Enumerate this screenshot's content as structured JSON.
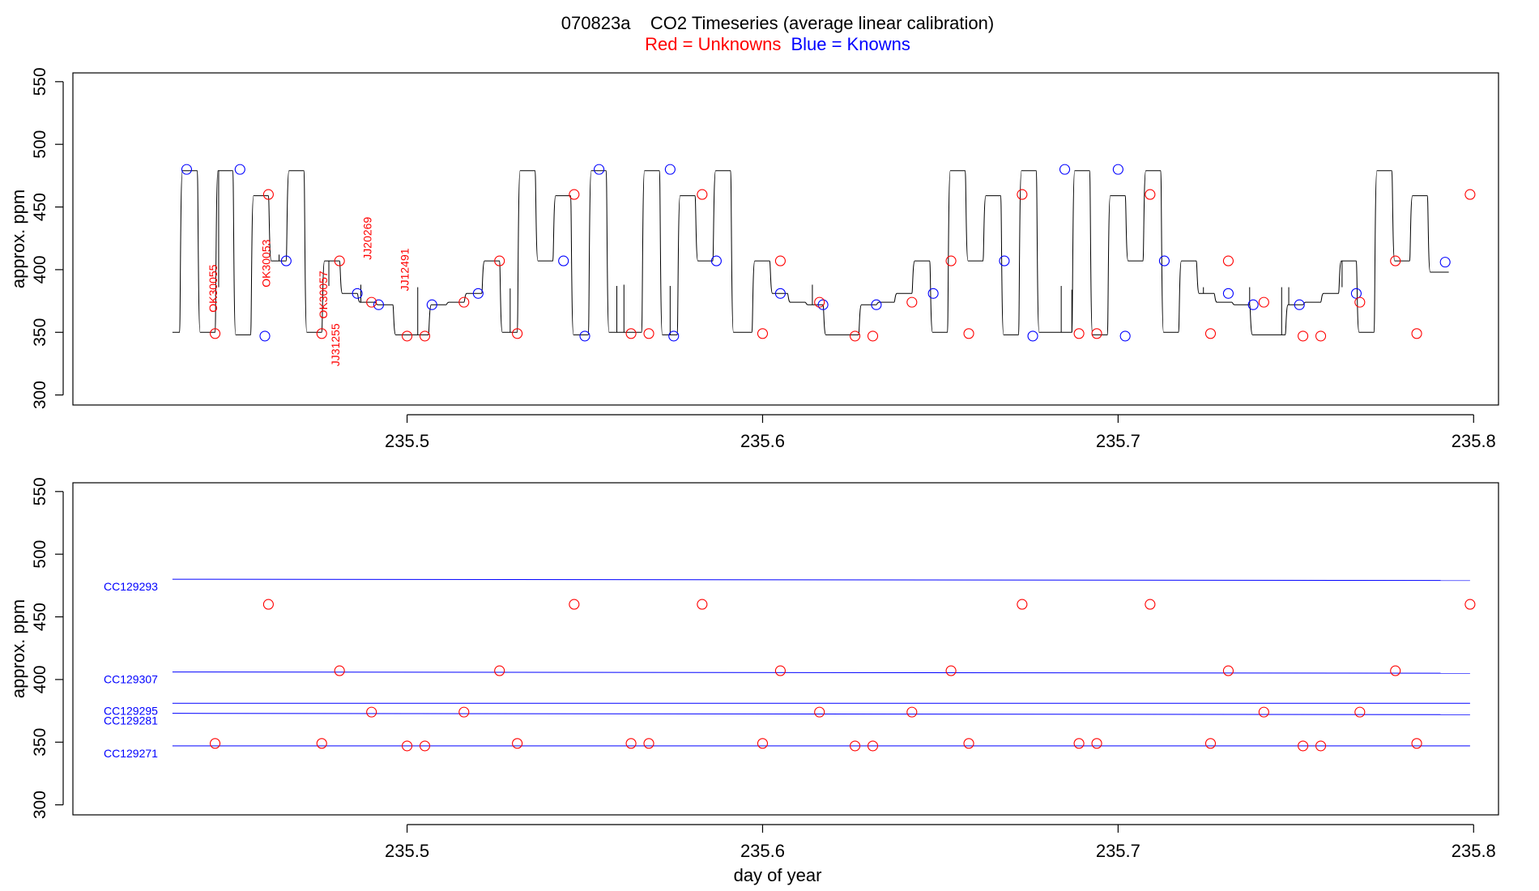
{
  "title": {
    "main": "070823a    CO2 Timeseries (average linear calibration)",
    "legend_red": "Red = Unknowns",
    "legend_blue": "Blue = Knowns"
  },
  "colors": {
    "unknown": "#ff0000",
    "known": "#0000ff",
    "trace": "#000000"
  },
  "chart_data": [
    {
      "type": "line",
      "panel": "top",
      "ylabel": "approx. ppm",
      "xlabel": "",
      "xlim": [
        235.406,
        235.807
      ],
      "ylim": [
        292,
        557
      ],
      "x_ticks": [
        "235.5",
        "235.6",
        "235.7",
        "235.8"
      ],
      "y_ticks": [
        "300",
        "350",
        "400",
        "450",
        "500",
        "550"
      ],
      "trace_levels": [
        {
          "x0": 235.434,
          "x1": 235.436,
          "y": 350
        },
        {
          "x0": 235.436,
          "x1": 235.441,
          "y": 479
        },
        {
          "x0": 235.441,
          "x1": 235.446,
          "y": 350
        },
        {
          "x0": 235.446,
          "x1": 235.451,
          "y": 479
        },
        {
          "x0": 235.451,
          "x1": 235.456,
          "y": 348
        },
        {
          "x0": 235.456,
          "x1": 235.461,
          "y": 459
        },
        {
          "x0": 235.461,
          "x1": 235.466,
          "y": 407
        },
        {
          "x0": 235.466,
          "x1": 235.471,
          "y": 479
        },
        {
          "x0": 235.471,
          "x1": 235.476,
          "y": 350
        },
        {
          "x0": 235.476,
          "x1": 235.481,
          "y": 407
        },
        {
          "x0": 235.481,
          "x1": 235.486,
          "y": 381
        },
        {
          "x0": 235.486,
          "x1": 235.491,
          "y": 374
        },
        {
          "x0": 235.491,
          "x1": 235.496,
          "y": 372
        },
        {
          "x0": 235.496,
          "x1": 235.506,
          "y": 348
        },
        {
          "x0": 235.506,
          "x1": 235.511,
          "y": 372
        },
        {
          "x0": 235.511,
          "x1": 235.516,
          "y": 374
        },
        {
          "x0": 235.516,
          "x1": 235.521,
          "y": 381
        },
        {
          "x0": 235.521,
          "x1": 235.526,
          "y": 407
        },
        {
          "x0": 235.526,
          "x1": 235.531,
          "y": 350
        },
        {
          "x0": 235.531,
          "x1": 235.536,
          "y": 479
        },
        {
          "x0": 235.536,
          "x1": 235.541,
          "y": 407
        },
        {
          "x0": 235.541,
          "x1": 235.546,
          "y": 459
        },
        {
          "x0": 235.546,
          "x1": 235.551,
          "y": 348
        },
        {
          "x0": 235.551,
          "x1": 235.556,
          "y": 479
        },
        {
          "x0": 235.556,
          "x1": 235.566,
          "y": 350
        },
        {
          "x0": 235.566,
          "x1": 235.571,
          "y": 479
        },
        {
          "x0": 235.571,
          "x1": 235.576,
          "y": 348
        },
        {
          "x0": 235.576,
          "x1": 235.581,
          "y": 459
        },
        {
          "x0": 235.581,
          "x1": 235.586,
          "y": 407
        },
        {
          "x0": 235.586,
          "x1": 235.591,
          "y": 479
        },
        {
          "x0": 235.591,
          "x1": 235.597,
          "y": 350
        },
        {
          "x0": 235.597,
          "x1": 235.602,
          "y": 407
        },
        {
          "x0": 235.602,
          "x1": 235.607,
          "y": 381
        },
        {
          "x0": 235.607,
          "x1": 235.612,
          "y": 374
        },
        {
          "x0": 235.612,
          "x1": 235.617,
          "y": 372
        },
        {
          "x0": 235.617,
          "x1": 235.627,
          "y": 348
        },
        {
          "x0": 235.627,
          "x1": 235.632,
          "y": 372
        },
        {
          "x0": 235.632,
          "x1": 235.637,
          "y": 374
        },
        {
          "x0": 235.637,
          "x1": 235.642,
          "y": 381
        },
        {
          "x0": 235.642,
          "x1": 235.647,
          "y": 407
        },
        {
          "x0": 235.647,
          "x1": 235.652,
          "y": 350
        },
        {
          "x0": 235.652,
          "x1": 235.657,
          "y": 479
        },
        {
          "x0": 235.657,
          "x1": 235.662,
          "y": 407
        },
        {
          "x0": 235.662,
          "x1": 235.667,
          "y": 459
        },
        {
          "x0": 235.667,
          "x1": 235.672,
          "y": 348
        },
        {
          "x0": 235.672,
          "x1": 235.677,
          "y": 479
        },
        {
          "x0": 235.677,
          "x1": 235.687,
          "y": 350
        },
        {
          "x0": 235.687,
          "x1": 235.692,
          "y": 479
        },
        {
          "x0": 235.692,
          "x1": 235.697,
          "y": 348
        },
        {
          "x0": 235.697,
          "x1": 235.702,
          "y": 459
        },
        {
          "x0": 235.702,
          "x1": 235.707,
          "y": 407
        },
        {
          "x0": 235.707,
          "x1": 235.712,
          "y": 479
        },
        {
          "x0": 235.712,
          "x1": 235.717,
          "y": 350
        },
        {
          "x0": 235.717,
          "x1": 235.722,
          "y": 407
        },
        {
          "x0": 235.722,
          "x1": 235.727,
          "y": 381
        },
        {
          "x0": 235.727,
          "x1": 235.732,
          "y": 374
        },
        {
          "x0": 235.732,
          "x1": 235.737,
          "y": 372
        },
        {
          "x0": 235.737,
          "x1": 235.747,
          "y": 348
        },
        {
          "x0": 235.747,
          "x1": 235.752,
          "y": 372
        },
        {
          "x0": 235.752,
          "x1": 235.757,
          "y": 374
        },
        {
          "x0": 235.757,
          "x1": 235.762,
          "y": 381
        },
        {
          "x0": 235.762,
          "x1": 235.767,
          "y": 407
        },
        {
          "x0": 235.767,
          "x1": 235.772,
          "y": 350
        },
        {
          "x0": 235.772,
          "x1": 235.777,
          "y": 479
        },
        {
          "x0": 235.777,
          "x1": 235.782,
          "y": 407
        },
        {
          "x0": 235.782,
          "x1": 235.787,
          "y": 459
        },
        {
          "x0": 235.787,
          "x1": 235.793,
          "y": 398
        }
      ],
      "spikes": [
        {
          "x": 235.447,
          "y": 386
        },
        {
          "x": 235.464,
          "y": 412
        },
        {
          "x": 235.478,
          "y": 387
        },
        {
          "x": 235.487,
          "y": 388
        },
        {
          "x": 235.503,
          "y": 386
        },
        {
          "x": 235.529,
          "y": 385
        },
        {
          "x": 235.559,
          "y": 387
        },
        {
          "x": 235.561,
          "y": 388
        },
        {
          "x": 235.574,
          "y": 387
        },
        {
          "x": 235.614,
          "y": 388
        },
        {
          "x": 235.684,
          "y": 387
        },
        {
          "x": 235.687,
          "y": 384
        },
        {
          "x": 235.724,
          "y": 386
        },
        {
          "x": 235.737,
          "y": 386
        },
        {
          "x": 235.746,
          "y": 386
        },
        {
          "x": 235.748,
          "y": 386
        },
        {
          "x": 235.763,
          "y": 386
        }
      ],
      "knowns": [
        {
          "x": 235.438,
          "y": 480
        },
        {
          "x": 235.453,
          "y": 480
        },
        {
          "x": 235.46,
          "y": 347
        },
        {
          "x": 235.466,
          "y": 407
        },
        {
          "x": 235.486,
          "y": 381
        },
        {
          "x": 235.492,
          "y": 372
        },
        {
          "x": 235.507,
          "y": 372
        },
        {
          "x": 235.52,
          "y": 381
        },
        {
          "x": 235.544,
          "y": 407
        },
        {
          "x": 235.55,
          "y": 347
        },
        {
          "x": 235.554,
          "y": 480
        },
        {
          "x": 235.574,
          "y": 480
        },
        {
          "x": 235.575,
          "y": 347
        },
        {
          "x": 235.587,
          "y": 407
        },
        {
          "x": 235.605,
          "y": 381
        },
        {
          "x": 235.617,
          "y": 372
        },
        {
          "x": 235.632,
          "y": 372
        },
        {
          "x": 235.648,
          "y": 381
        },
        {
          "x": 235.668,
          "y": 407
        },
        {
          "x": 235.676,
          "y": 347
        },
        {
          "x": 235.685,
          "y": 480
        },
        {
          "x": 235.7,
          "y": 480
        },
        {
          "x": 235.702,
          "y": 347
        },
        {
          "x": 235.713,
          "y": 407
        },
        {
          "x": 235.731,
          "y": 381
        },
        {
          "x": 235.738,
          "y": 372
        },
        {
          "x": 235.751,
          "y": 372
        },
        {
          "x": 235.767,
          "y": 381
        },
        {
          "x": 235.792,
          "y": 406
        }
      ],
      "unknowns": [
        {
          "x": 235.446,
          "y": 349
        },
        {
          "x": 235.461,
          "y": 460
        },
        {
          "x": 235.476,
          "y": 349
        },
        {
          "x": 235.481,
          "y": 407
        },
        {
          "x": 235.49,
          "y": 374
        },
        {
          "x": 235.5,
          "y": 347
        },
        {
          "x": 235.505,
          "y": 347
        },
        {
          "x": 235.516,
          "y": 374
        },
        {
          "x": 235.526,
          "y": 407
        },
        {
          "x": 235.531,
          "y": 349
        },
        {
          "x": 235.547,
          "y": 460
        },
        {
          "x": 235.563,
          "y": 349
        },
        {
          "x": 235.568,
          "y": 349
        },
        {
          "x": 235.583,
          "y": 460
        },
        {
          "x": 235.6,
          "y": 349
        },
        {
          "x": 235.605,
          "y": 407
        },
        {
          "x": 235.616,
          "y": 374
        },
        {
          "x": 235.626,
          "y": 347
        },
        {
          "x": 235.631,
          "y": 347
        },
        {
          "x": 235.642,
          "y": 374
        },
        {
          "x": 235.653,
          "y": 407
        },
        {
          "x": 235.658,
          "y": 349
        },
        {
          "x": 235.673,
          "y": 460
        },
        {
          "x": 235.689,
          "y": 349
        },
        {
          "x": 235.694,
          "y": 349
        },
        {
          "x": 235.709,
          "y": 460
        },
        {
          "x": 235.726,
          "y": 349
        },
        {
          "x": 235.731,
          "y": 407
        },
        {
          "x": 235.741,
          "y": 374
        },
        {
          "x": 235.752,
          "y": 347
        },
        {
          "x": 235.757,
          "y": 347
        },
        {
          "x": 235.768,
          "y": 374
        },
        {
          "x": 235.778,
          "y": 407
        },
        {
          "x": 235.784,
          "y": 349
        },
        {
          "x": 235.799,
          "y": 460
        }
      ],
      "annotations": [
        {
          "text": "OK30055",
          "x": 235.4465,
          "y": 385
        },
        {
          "text": "OK30053",
          "x": 235.4615,
          "y": 405
        },
        {
          "text": "OK30057",
          "x": 235.4775,
          "y": 380
        },
        {
          "text": "JJ31255",
          "x": 235.481,
          "y": 340
        },
        {
          "text": "JJ20269",
          "x": 235.49,
          "y": 425
        },
        {
          "text": "JJ12491",
          "x": 235.5005,
          "y": 400
        }
      ]
    },
    {
      "type": "scatter",
      "panel": "bottom",
      "ylabel": "approx. ppm",
      "xlabel": "day of year",
      "xlim": [
        235.406,
        235.807
      ],
      "ylim": [
        292,
        557
      ],
      "x_ticks": [
        "235.5",
        "235.6",
        "235.7",
        "235.8"
      ],
      "y_ticks": [
        "300",
        "350",
        "400",
        "450",
        "500",
        "550"
      ],
      "standards": [
        {
          "name": "CC129293",
          "y_start": 480,
          "y_end": 479
        },
        {
          "name": "CC129307",
          "y_start": 406,
          "y_end": 405
        },
        {
          "name": "CC129295",
          "y_start": 381,
          "y_end": 381
        },
        {
          "name": "CC129281",
          "y_start": 373,
          "y_end": 372
        },
        {
          "name": "CC129271",
          "y_start": 347,
          "y_end": 347
        }
      ],
      "standard_x_range": [
        235.434,
        235.799
      ],
      "unknowns": [
        {
          "x": 235.446,
          "y": 349
        },
        {
          "x": 235.461,
          "y": 460
        },
        {
          "x": 235.476,
          "y": 349
        },
        {
          "x": 235.481,
          "y": 407
        },
        {
          "x": 235.49,
          "y": 374
        },
        {
          "x": 235.5,
          "y": 347
        },
        {
          "x": 235.505,
          "y": 347
        },
        {
          "x": 235.516,
          "y": 374
        },
        {
          "x": 235.526,
          "y": 407
        },
        {
          "x": 235.531,
          "y": 349
        },
        {
          "x": 235.547,
          "y": 460
        },
        {
          "x": 235.563,
          "y": 349
        },
        {
          "x": 235.568,
          "y": 349
        },
        {
          "x": 235.583,
          "y": 460
        },
        {
          "x": 235.6,
          "y": 349
        },
        {
          "x": 235.605,
          "y": 407
        },
        {
          "x": 235.616,
          "y": 374
        },
        {
          "x": 235.626,
          "y": 347
        },
        {
          "x": 235.631,
          "y": 347
        },
        {
          "x": 235.642,
          "y": 374
        },
        {
          "x": 235.653,
          "y": 407
        },
        {
          "x": 235.658,
          "y": 349
        },
        {
          "x": 235.673,
          "y": 460
        },
        {
          "x": 235.689,
          "y": 349
        },
        {
          "x": 235.694,
          "y": 349
        },
        {
          "x": 235.709,
          "y": 460
        },
        {
          "x": 235.726,
          "y": 349
        },
        {
          "x": 235.731,
          "y": 407
        },
        {
          "x": 235.741,
          "y": 374
        },
        {
          "x": 235.752,
          "y": 347
        },
        {
          "x": 235.757,
          "y": 347
        },
        {
          "x": 235.768,
          "y": 374
        },
        {
          "x": 235.778,
          "y": 407
        },
        {
          "x": 235.784,
          "y": 349
        },
        {
          "x": 235.799,
          "y": 460
        }
      ]
    }
  ]
}
